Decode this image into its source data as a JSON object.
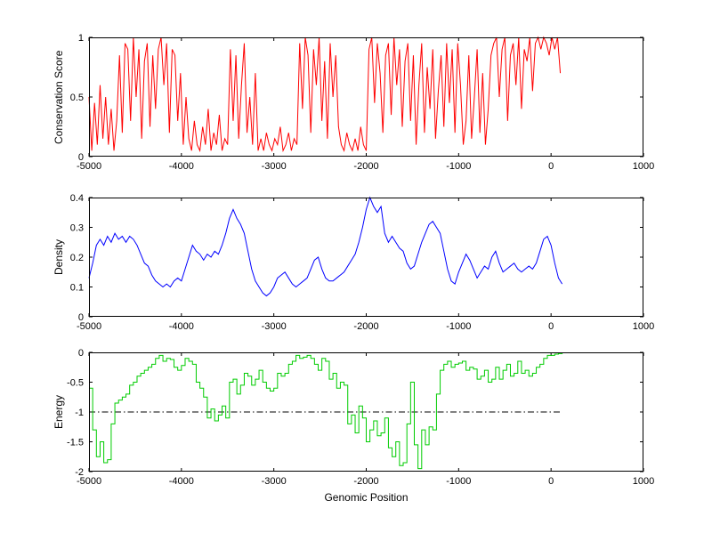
{
  "figure": {
    "background": "#ffffff",
    "xlabel": "Genomic Position",
    "axis_color": "#000000",
    "ref_line_color": "#000000"
  },
  "chart_data": [
    {
      "type": "line",
      "title": "",
      "ylabel": "Conservation Score",
      "color": "#ff0000",
      "xlim": [
        -5000,
        1000
      ],
      "ylim": [
        0,
        1
      ],
      "xticks": [
        -5000,
        -4000,
        -3000,
        -2000,
        -1000,
        0,
        1000
      ],
      "yticks": [
        0,
        0.5,
        1
      ],
      "grid": false,
      "legend": null,
      "x_start": -5000,
      "x_step": 30,
      "step": false,
      "y": [
        0.5,
        0.05,
        0.45,
        0.1,
        0.6,
        0.15,
        0.5,
        0.1,
        0.4,
        0.05,
        0.3,
        0.85,
        0.2,
        0.95,
        0.9,
        0.3,
        1.0,
        0.5,
        0.9,
        0.15,
        0.8,
        0.95,
        0.25,
        0.85,
        0.4,
        0.9,
        1.0,
        0.6,
        0.95,
        0.2,
        0.9,
        0.85,
        0.3,
        0.7,
        0.1,
        0.5,
        0.15,
        0.05,
        0.3,
        0.1,
        0.05,
        0.25,
        0.1,
        0.4,
        0.05,
        0.2,
        0.1,
        0.35,
        0.05,
        0.15,
        0.1,
        0.9,
        0.3,
        0.85,
        0.15,
        0.6,
        0.95,
        0.2,
        0.5,
        0.1,
        0.7,
        0.05,
        0.15,
        0.05,
        0.2,
        0.1,
        0.05,
        0.15,
        0.1,
        0.25,
        0.05,
        0.1,
        0.2,
        0.05,
        0.15,
        0.1,
        0.95,
        0.4,
        1.0,
        0.85,
        0.2,
        0.9,
        0.6,
        1.0,
        0.3,
        0.8,
        0.15,
        0.95,
        0.5,
        0.85,
        0.25,
        0.1,
        0.05,
        0.2,
        0.1,
        0.05,
        0.15,
        0.05,
        0.25,
        0.1,
        0.05,
        0.9,
        1.0,
        0.45,
        0.95,
        0.7,
        0.2,
        0.85,
        0.95,
        0.35,
        1.0,
        0.6,
        0.9,
        0.25,
        0.8,
        0.95,
        0.3,
        0.85,
        0.1,
        0.6,
        0.95,
        0.2,
        0.75,
        0.4,
        0.9,
        0.15,
        0.55,
        0.85,
        0.25,
        0.95,
        0.45,
        0.9,
        0.2,
        0.95,
        0.6,
        0.1,
        0.3,
        0.85,
        0.15,
        0.5,
        0.9,
        0.2,
        0.7,
        0.1,
        0.4,
        0.85,
        0.95,
        1.0,
        0.5,
        0.9,
        1.0,
        0.3,
        0.85,
        0.95,
        0.6,
        1.0,
        0.4,
        0.9,
        0.8,
        1.0,
        0.55,
        0.95,
        1.0,
        0.9,
        1.0,
        0.95,
        0.85,
        1.0,
        0.9,
        1.0,
        0.7
      ]
    },
    {
      "type": "line",
      "title": "",
      "ylabel": "Density",
      "color": "#0000ff",
      "xlim": [
        -5000,
        1000
      ],
      "ylim": [
        0,
        0.4
      ],
      "xticks": [
        -5000,
        -4000,
        -3000,
        -2000,
        -1000,
        0,
        1000
      ],
      "yticks": [
        0,
        0.1,
        0.2,
        0.3,
        0.4
      ],
      "grid": false,
      "legend": null,
      "x_start": -5000,
      "x_step": 40,
      "step": false,
      "y": [
        0.13,
        0.18,
        0.24,
        0.26,
        0.24,
        0.27,
        0.25,
        0.28,
        0.26,
        0.27,
        0.25,
        0.27,
        0.26,
        0.24,
        0.21,
        0.18,
        0.17,
        0.14,
        0.12,
        0.11,
        0.1,
        0.11,
        0.1,
        0.12,
        0.13,
        0.12,
        0.16,
        0.2,
        0.24,
        0.22,
        0.21,
        0.19,
        0.21,
        0.2,
        0.22,
        0.21,
        0.24,
        0.28,
        0.33,
        0.36,
        0.33,
        0.31,
        0.28,
        0.22,
        0.16,
        0.12,
        0.1,
        0.08,
        0.07,
        0.08,
        0.1,
        0.13,
        0.14,
        0.15,
        0.13,
        0.11,
        0.1,
        0.11,
        0.12,
        0.13,
        0.16,
        0.19,
        0.2,
        0.16,
        0.13,
        0.12,
        0.12,
        0.13,
        0.14,
        0.15,
        0.17,
        0.19,
        0.21,
        0.25,
        0.3,
        0.36,
        0.4,
        0.37,
        0.35,
        0.37,
        0.28,
        0.25,
        0.27,
        0.25,
        0.23,
        0.22,
        0.18,
        0.16,
        0.17,
        0.21,
        0.25,
        0.28,
        0.31,
        0.32,
        0.3,
        0.28,
        0.22,
        0.16,
        0.12,
        0.11,
        0.15,
        0.18,
        0.21,
        0.19,
        0.16,
        0.13,
        0.15,
        0.17,
        0.16,
        0.2,
        0.22,
        0.18,
        0.15,
        0.16,
        0.17,
        0.18,
        0.16,
        0.15,
        0.16,
        0.17,
        0.16,
        0.18,
        0.22,
        0.26,
        0.27,
        0.24,
        0.18,
        0.13,
        0.11
      ]
    },
    {
      "type": "line",
      "title": "",
      "ylabel": "Energy",
      "color": "#00cc00",
      "xlim": [
        -5000,
        1000
      ],
      "ylim": [
        -2,
        0
      ],
      "xticks": [
        -5000,
        -4000,
        -3000,
        -2000,
        -1000,
        0,
        1000
      ],
      "yticks": [
        -2,
        -1.5,
        -1,
        -0.5,
        0
      ],
      "grid": false,
      "legend": null,
      "x_start": -5000,
      "x_step": 40,
      "step": true,
      "ref_line": -1,
      "ref_style": "dash-dot",
      "y": [
        -0.6,
        -1.3,
        -1.75,
        -1.5,
        -1.85,
        -1.8,
        -1.2,
        -0.85,
        -0.8,
        -0.75,
        -0.7,
        -0.55,
        -0.5,
        -0.4,
        -0.35,
        -0.3,
        -0.25,
        -0.2,
        -0.1,
        -0.05,
        -0.15,
        -0.1,
        -0.12,
        -0.25,
        -0.3,
        -0.22,
        -0.1,
        -0.15,
        -0.2,
        -0.5,
        -0.6,
        -0.75,
        -1.1,
        -0.95,
        -1.15,
        -1.05,
        -0.9,
        -1.1,
        -0.5,
        -0.45,
        -0.7,
        -0.55,
        -0.35,
        -0.4,
        -0.55,
        -0.45,
        -0.3,
        -0.5,
        -0.6,
        -0.65,
        -0.6,
        -0.35,
        -0.4,
        -0.35,
        -0.2,
        -0.15,
        -0.05,
        -0.1,
        -0.08,
        -0.05,
        -0.1,
        -0.2,
        -0.3,
        -0.1,
        -0.15,
        -0.45,
        -0.35,
        -0.6,
        -0.5,
        -0.55,
        -1.2,
        -1.05,
        -1.35,
        -0.9,
        -1.1,
        -1.5,
        -1.3,
        -1.15,
        -1.4,
        -1.35,
        -1.1,
        -1.6,
        -1.75,
        -1.5,
        -1.9,
        -1.85,
        -1.2,
        -0.5,
        -1.55,
        -1.95,
        -1.3,
        -1.55,
        -1.25,
        -1.3,
        -0.7,
        -0.3,
        -0.2,
        -0.15,
        -0.25,
        -0.2,
        -0.18,
        -0.15,
        -0.3,
        -0.25,
        -0.28,
        -0.45,
        -0.4,
        -0.3,
        -0.5,
        -0.45,
        -0.25,
        -0.45,
        -0.3,
        -0.2,
        -0.4,
        -0.35,
        -0.15,
        -0.35,
        -0.3,
        -0.4,
        -0.35,
        -0.25,
        -0.2,
        -0.1,
        -0.05,
        -0.05,
        -0.03,
        -0.02,
        0.0
      ]
    }
  ]
}
